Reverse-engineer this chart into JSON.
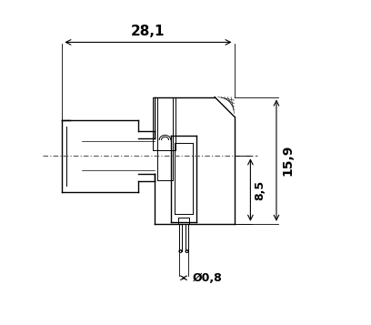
{
  "bg_color": "#ffffff",
  "line_color": "#000000",
  "dim_color": "#000000",
  "centerline_color": "#555555",
  "figsize": [
    4.08,
    3.57
  ],
  "dpi": 100,
  "dim_28_1": "28,1",
  "dim_15_9": "15,9",
  "dim_8_5": "8,5",
  "dim_0_8": "Ø0,8",
  "xlim": [
    0,
    10
  ],
  "ylim": [
    0,
    10
  ]
}
